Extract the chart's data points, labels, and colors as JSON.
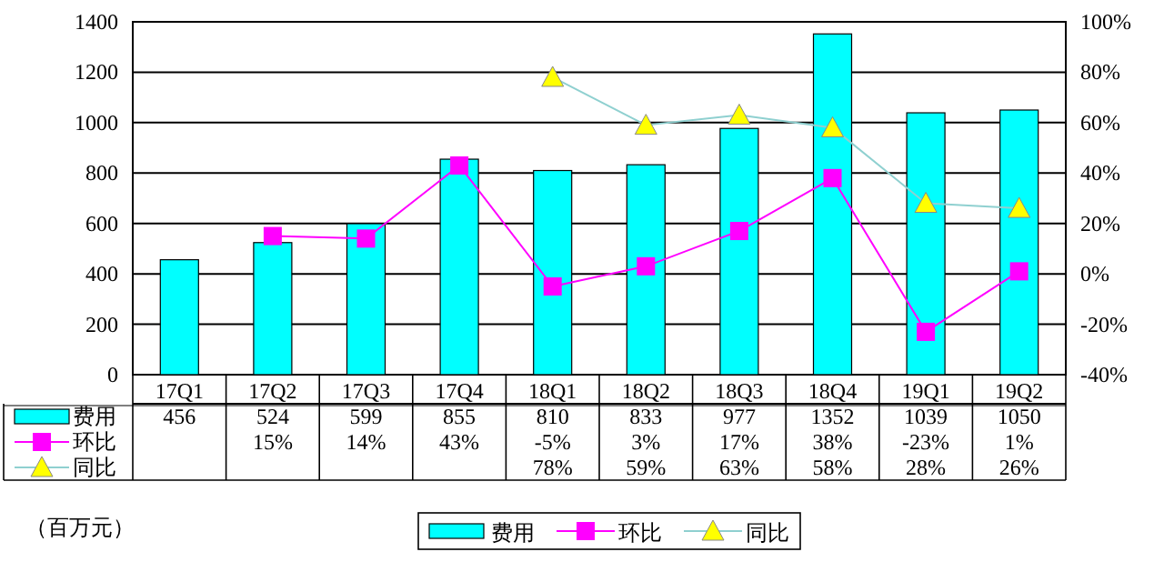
{
  "chart_data": {
    "type": "bar",
    "annotations": [
      "（百万元）"
    ],
    "categories": [
      "17Q1",
      "17Q2",
      "17Q3",
      "17Q4",
      "18Q1",
      "18Q2",
      "18Q3",
      "18Q4",
      "19Q1",
      "19Q2"
    ],
    "series": [
      {
        "name": "费用",
        "color": "#00ffff",
        "values": [
          456,
          524,
          599,
          855,
          810,
          833,
          977,
          1352,
          1039,
          1050
        ],
        "value_labels": [
          "456",
          "524",
          "599",
          "855",
          "810",
          "833",
          "977",
          "1352",
          "1039",
          "1050"
        ]
      },
      {
        "name": "环比",
        "type": "line",
        "axis": "y2",
        "marker": "square",
        "color": "#ff00ff",
        "values": [
          null,
          15,
          14,
          43,
          -5,
          3,
          17,
          38,
          -23,
          1
        ],
        "value_labels": [
          null,
          "15%",
          "14%",
          "43%",
          "-5%",
          "3%",
          "17%",
          "38%",
          "-23%",
          "1%"
        ]
      },
      {
        "name": "同比",
        "type": "line",
        "axis": "y2",
        "marker": "triangle",
        "color": "#ffff00",
        "values": [
          null,
          null,
          null,
          null,
          78,
          59,
          63,
          58,
          28,
          26
        ],
        "value_labels": [
          null,
          null,
          null,
          null,
          "78%",
          "59%",
          "63%",
          "58%",
          "28%",
          "26%"
        ]
      }
    ],
    "ylim": [
      0,
      1400
    ],
    "yticks": [
      0,
      200,
      400,
      600,
      800,
      1000,
      1200,
      1400
    ],
    "y2lim": [
      -40,
      100
    ],
    "y2ticks": [
      {
        "value": -40,
        "label": "-40%"
      },
      {
        "value": -20,
        "label": "-20%"
      },
      {
        "value": 0,
        "label": "0%"
      },
      {
        "value": 20,
        "label": "20%"
      },
      {
        "value": 40,
        "label": "40%"
      },
      {
        "value": 60,
        "label": "60%"
      },
      {
        "value": 80,
        "label": "80%"
      },
      {
        "value": 100,
        "label": "100%"
      }
    ],
    "grid": "y",
    "legend": "bottom"
  }
}
